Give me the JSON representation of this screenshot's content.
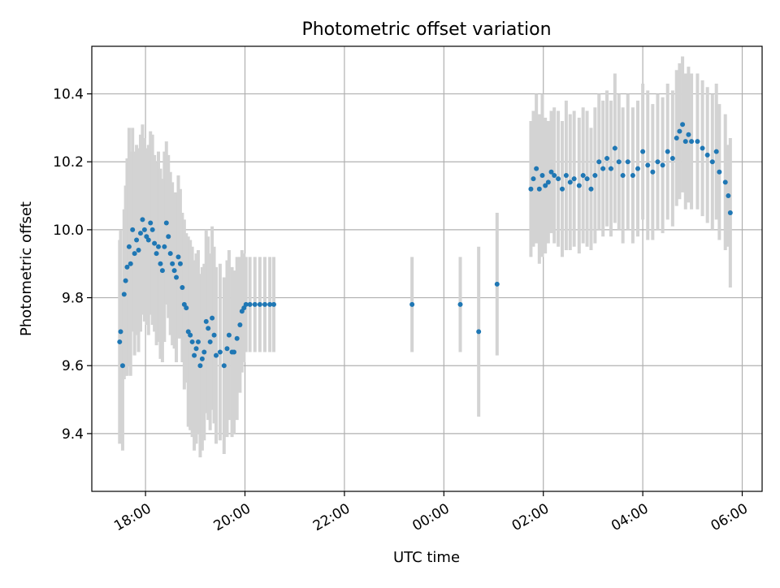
{
  "chart_data": {
    "type": "scatter",
    "title": "Photometric offset variation",
    "xlabel": "UTC time",
    "ylabel": "Photometric offset",
    "x_axis_unit": "hours since 18:00 UTC",
    "xlim": [
      -1.08,
      12.4
    ],
    "ylim": [
      9.23,
      10.54
    ],
    "grid": true,
    "legend": "none",
    "x_ticks": [
      {
        "value": 0,
        "label": "18:00"
      },
      {
        "value": 2,
        "label": "20:00"
      },
      {
        "value": 4,
        "label": "22:00"
      },
      {
        "value": 6,
        "label": "00:00"
      },
      {
        "value": 8,
        "label": "02:00"
      },
      {
        "value": 10,
        "label": "04:00"
      },
      {
        "value": 12,
        "label": "06:00"
      }
    ],
    "y_ticks": [
      {
        "value": 9.4,
        "label": "9.4"
      },
      {
        "value": 9.6,
        "label": "9.6"
      },
      {
        "value": 9.8,
        "label": "9.8"
      },
      {
        "value": 10.0,
        "label": "10.0"
      },
      {
        "value": 10.2,
        "label": "10.2"
      },
      {
        "value": 10.4,
        "label": "10.4"
      }
    ],
    "colors": {
      "points": "#1f77b4",
      "errorbars": "#d3d3d3",
      "grid": "#b0b0b0"
    },
    "series": [
      {
        "name": "",
        "points": [
          [
            -0.52,
            9.67,
            0.3
          ],
          [
            -0.5,
            9.7,
            0.3
          ],
          [
            -0.46,
            9.6,
            0.25
          ],
          [
            -0.43,
            9.81,
            0.25
          ],
          [
            -0.4,
            9.85,
            0.28
          ],
          [
            -0.37,
            9.89,
            0.32
          ],
          [
            -0.33,
            9.95,
            0.35
          ],
          [
            -0.3,
            9.9,
            0.33
          ],
          [
            -0.26,
            10.0,
            0.3
          ],
          [
            -0.22,
            9.93,
            0.3
          ],
          [
            -0.18,
            9.97,
            0.28
          ],
          [
            -0.14,
            9.94,
            0.3
          ],
          [
            -0.1,
            9.99,
            0.29
          ],
          [
            -0.06,
            10.03,
            0.28
          ],
          [
            -0.02,
            10.0,
            0.27
          ],
          [
            0.02,
            9.98,
            0.26
          ],
          [
            0.06,
            9.97,
            0.28
          ],
          [
            0.1,
            10.02,
            0.27
          ],
          [
            0.14,
            10.0,
            0.28
          ],
          [
            0.18,
            9.96,
            0.26
          ],
          [
            0.22,
            9.93,
            0.27
          ],
          [
            0.26,
            9.95,
            0.28
          ],
          [
            0.3,
            9.9,
            0.28
          ],
          [
            0.34,
            9.88,
            0.27
          ],
          [
            0.38,
            9.95,
            0.28
          ],
          [
            0.42,
            10.02,
            0.24
          ],
          [
            0.46,
            9.98,
            0.24
          ],
          [
            0.5,
            9.93,
            0.24
          ],
          [
            0.54,
            9.9,
            0.24
          ],
          [
            0.58,
            9.88,
            0.23
          ],
          [
            0.62,
            9.86,
            0.25
          ],
          [
            0.66,
            9.92,
            0.24
          ],
          [
            0.7,
            9.9,
            0.22
          ],
          [
            0.74,
            9.83,
            0.22
          ],
          [
            0.78,
            9.78,
            0.25
          ],
          [
            0.82,
            9.77,
            0.22
          ],
          [
            0.86,
            9.7,
            0.28
          ],
          [
            0.9,
            9.69,
            0.28
          ],
          [
            0.94,
            9.67,
            0.28
          ],
          [
            0.98,
            9.63,
            0.28
          ],
          [
            1.02,
            9.65,
            0.28
          ],
          [
            1.06,
            9.67,
            0.27
          ],
          [
            1.1,
            9.6,
            0.27
          ],
          [
            1.14,
            9.62,
            0.27
          ],
          [
            1.18,
            9.64,
            0.26
          ],
          [
            1.22,
            9.73,
            0.27
          ],
          [
            1.26,
            9.71,
            0.27
          ],
          [
            1.3,
            9.67,
            0.26
          ],
          [
            1.34,
            9.74,
            0.27
          ],
          [
            1.38,
            9.69,
            0.26
          ],
          [
            1.42,
            9.63,
            0.26
          ],
          [
            1.5,
            9.64,
            0.26
          ],
          [
            1.58,
            9.6,
            0.26
          ],
          [
            1.64,
            9.65,
            0.26
          ],
          [
            1.68,
            9.69,
            0.25
          ],
          [
            1.74,
            9.64,
            0.25
          ],
          [
            1.78,
            9.64,
            0.24
          ],
          [
            1.84,
            9.68,
            0.24
          ],
          [
            1.9,
            9.72,
            0.2
          ],
          [
            1.94,
            9.76,
            0.18
          ],
          [
            1.98,
            9.77,
            0.16
          ],
          [
            2.02,
            9.78,
            0.14
          ],
          [
            2.1,
            9.78,
            0.14
          ],
          [
            2.2,
            9.78,
            0.14
          ],
          [
            2.3,
            9.78,
            0.14
          ],
          [
            2.4,
            9.78,
            0.14
          ],
          [
            2.5,
            9.78,
            0.14
          ],
          [
            2.58,
            9.78,
            0.14
          ],
          [
            5.36,
            9.78,
            0.14
          ],
          [
            6.33,
            9.78,
            0.14
          ],
          [
            6.7,
            9.7,
            0.25
          ],
          [
            7.07,
            9.84,
            0.21
          ],
          [
            7.75,
            10.12,
            0.2
          ],
          [
            7.8,
            10.15,
            0.2
          ],
          [
            7.86,
            10.18,
            0.22
          ],
          [
            7.92,
            10.12,
            0.22
          ],
          [
            7.98,
            10.16,
            0.24
          ],
          [
            8.04,
            10.13,
            0.2
          ],
          [
            8.1,
            10.14,
            0.18
          ],
          [
            8.16,
            10.17,
            0.18
          ],
          [
            8.22,
            10.16,
            0.2
          ],
          [
            8.3,
            10.15,
            0.2
          ],
          [
            8.38,
            10.12,
            0.2
          ],
          [
            8.46,
            10.16,
            0.22
          ],
          [
            8.54,
            10.14,
            0.2
          ],
          [
            8.62,
            10.15,
            0.2
          ],
          [
            8.72,
            10.13,
            0.2
          ],
          [
            8.8,
            10.16,
            0.2
          ],
          [
            8.88,
            10.15,
            0.2
          ],
          [
            8.96,
            10.12,
            0.18
          ],
          [
            9.04,
            10.16,
            0.2
          ],
          [
            9.12,
            10.2,
            0.2
          ],
          [
            9.2,
            10.18,
            0.2
          ],
          [
            9.28,
            10.21,
            0.2
          ],
          [
            9.36,
            10.18,
            0.2
          ],
          [
            9.44,
            10.24,
            0.22
          ],
          [
            9.52,
            10.2,
            0.2
          ],
          [
            9.6,
            10.16,
            0.2
          ],
          [
            9.7,
            10.2,
            0.2
          ],
          [
            9.8,
            10.16,
            0.2
          ],
          [
            9.9,
            10.18,
            0.2
          ],
          [
            10.0,
            10.23,
            0.2
          ],
          [
            10.1,
            10.19,
            0.22
          ],
          [
            10.2,
            10.17,
            0.2
          ],
          [
            10.3,
            10.2,
            0.2
          ],
          [
            10.4,
            10.19,
            0.2
          ],
          [
            10.5,
            10.23,
            0.2
          ],
          [
            10.6,
            10.21,
            0.2
          ],
          [
            10.68,
            10.27,
            0.2
          ],
          [
            10.74,
            10.29,
            0.2
          ],
          [
            10.8,
            10.31,
            0.2
          ],
          [
            10.86,
            10.26,
            0.2
          ],
          [
            10.92,
            10.28,
            0.2
          ],
          [
            10.98,
            10.26,
            0.2
          ],
          [
            11.1,
            10.26,
            0.2
          ],
          [
            11.2,
            10.24,
            0.2
          ],
          [
            11.3,
            10.22,
            0.2
          ],
          [
            11.4,
            10.2,
            0.2
          ],
          [
            11.48,
            10.23,
            0.2
          ],
          [
            11.54,
            10.17,
            0.2
          ],
          [
            11.66,
            10.14,
            0.2
          ],
          [
            11.72,
            10.1,
            0.15
          ],
          [
            11.76,
            10.05,
            0.22
          ]
        ]
      }
    ]
  }
}
